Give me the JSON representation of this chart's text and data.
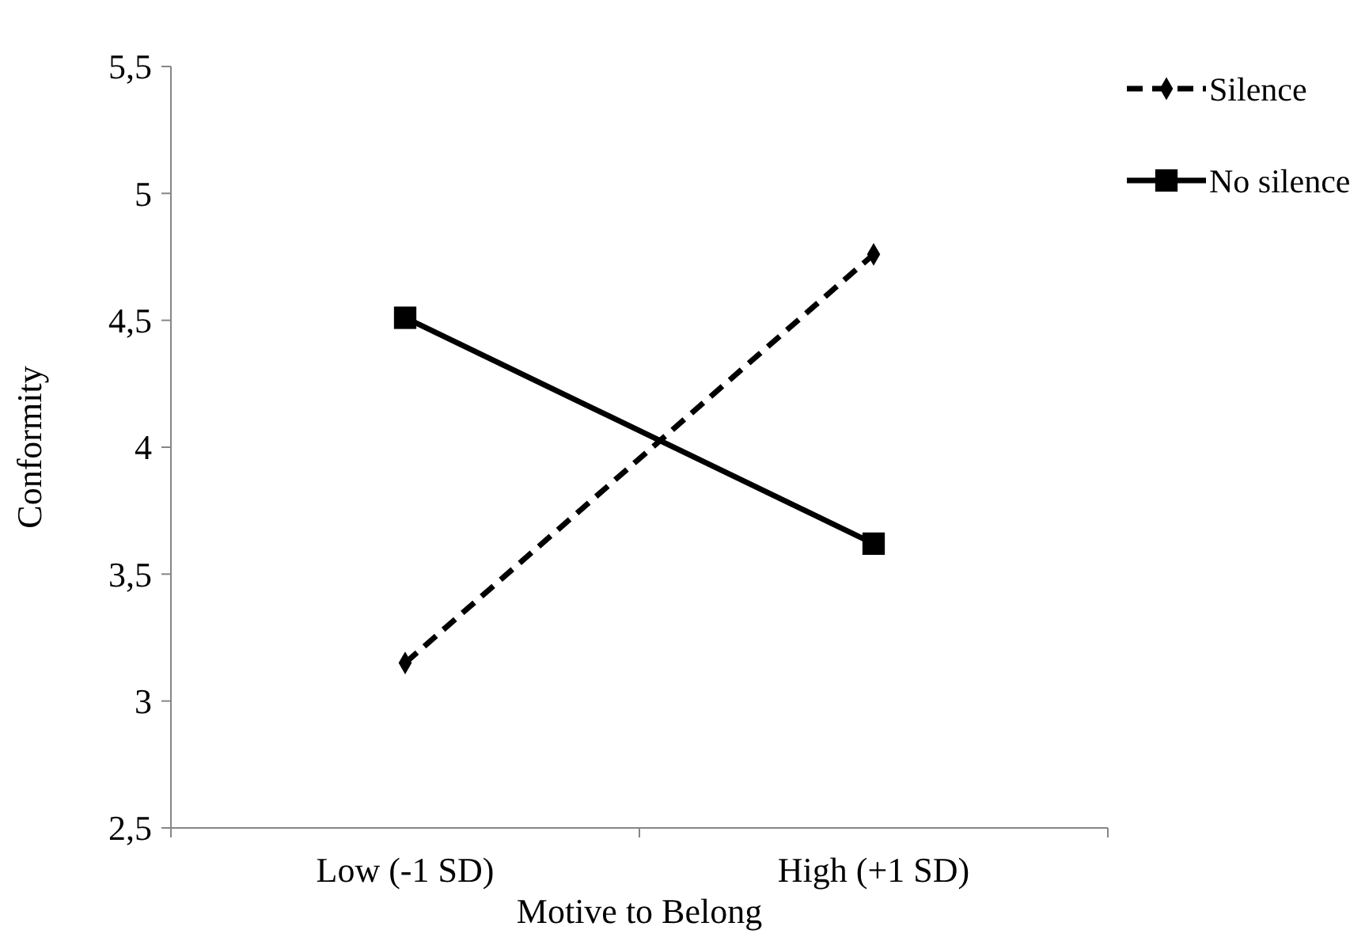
{
  "chart_data": {
    "type": "line",
    "xlabel": "Motive to Belong",
    "ylabel": "Conformity",
    "categories": [
      "Low (-1 SD)",
      "High (+1 SD)"
    ],
    "series": [
      {
        "name": "Silence",
        "color": "#000000",
        "values": [
          3.15,
          4.76
        ],
        "marker": "diamond",
        "line_style": "dashed"
      },
      {
        "name": "No silence",
        "color": "#000000",
        "values": [
          4.51,
          3.62
        ],
        "marker": "square",
        "line_style": "solid"
      }
    ],
    "ylim": [
      2.5,
      5.5
    ],
    "yticks": [
      {
        "value": 2.5,
        "label": "2,5"
      },
      3,
      {
        "value": 3.5,
        "label": "3,5"
      },
      4,
      {
        "value": 4.5,
        "label": "4,5"
      },
      5,
      {
        "value": 5.5,
        "label": "5,5"
      }
    ],
    "grid": false,
    "legend": "top right"
  }
}
